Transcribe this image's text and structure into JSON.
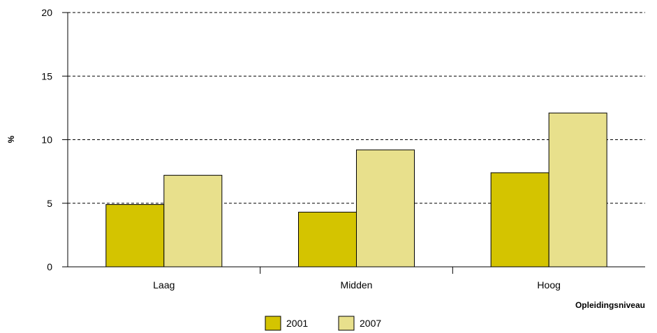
{
  "chart_data": {
    "type": "bar",
    "categories": [
      "Laag",
      "Midden",
      "Hoog"
    ],
    "series": [
      {
        "name": "2001",
        "values": [
          4.9,
          4.3,
          7.4
        ],
        "color": "#d4c400"
      },
      {
        "name": "2007",
        "values": [
          7.2,
          9.2,
          12.1
        ],
        "color": "#e8e08c"
      }
    ],
    "title": "",
    "xlabel": "Opleidingsniveau",
    "ylabel": "%",
    "ylim": [
      0,
      20
    ],
    "yticks": [
      "0",
      "5",
      "10",
      "15",
      "20"
    ],
    "grid": "horizontal dashed",
    "legend": "bottom-center"
  }
}
